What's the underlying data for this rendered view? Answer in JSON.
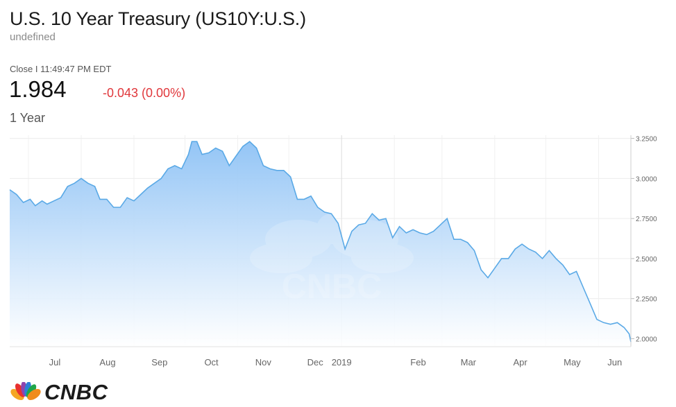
{
  "header": {
    "title": "U.S. 10 Year Treasury (US10Y:U.S.)",
    "subtitle": "undefined",
    "close_label": "Close I 11:49:47 PM EDT",
    "price": "1.984",
    "change": "-0.043 (0.00%)",
    "range": "1 Year"
  },
  "brand": {
    "name": "CNBC",
    "watermark": "CNBC"
  },
  "colors": {
    "line": "#5aa9e6",
    "fill_top": "#8ec2f5",
    "fill_bottom": "#ffffff",
    "change": "#e0373b"
  },
  "chart_data": {
    "type": "area",
    "x_tick_labels": [
      "Jul",
      "Aug",
      "Sep",
      "Oct",
      "Nov",
      "Dec",
      "2019",
      "Feb",
      "Mar",
      "Apr",
      "May",
      "Jun"
    ],
    "y_tick_labels": [
      "3.2500",
      "3.0000",
      "2.7500",
      "2.5000",
      "2.2500",
      "2.0000"
    ],
    "y_ticks": [
      3.25,
      3.0,
      2.75,
      2.5,
      2.25,
      2.0
    ],
    "ylim": [
      1.95,
      3.27
    ],
    "x_range": [
      "2018-06-20",
      "2019-06-20"
    ],
    "grid": true,
    "axis_position": "right",
    "series": [
      {
        "points": [
          [
            "2018-06-20",
            2.93
          ],
          [
            "2018-06-24",
            2.9
          ],
          [
            "2018-06-28",
            2.85
          ],
          [
            "2018-07-02",
            2.87
          ],
          [
            "2018-07-05",
            2.83
          ],
          [
            "2018-07-09",
            2.86
          ],
          [
            "2018-07-12",
            2.84
          ],
          [
            "2018-07-16",
            2.86
          ],
          [
            "2018-07-20",
            2.88
          ],
          [
            "2018-07-24",
            2.95
          ],
          [
            "2018-07-28",
            2.97
          ],
          [
            "2018-08-01",
            3.0
          ],
          [
            "2018-08-05",
            2.97
          ],
          [
            "2018-08-09",
            2.95
          ],
          [
            "2018-08-12",
            2.87
          ],
          [
            "2018-08-16",
            2.87
          ],
          [
            "2018-08-20",
            2.82
          ],
          [
            "2018-08-24",
            2.82
          ],
          [
            "2018-08-28",
            2.88
          ],
          [
            "2018-09-01",
            2.86
          ],
          [
            "2018-09-05",
            2.9
          ],
          [
            "2018-09-09",
            2.94
          ],
          [
            "2018-09-13",
            2.97
          ],
          [
            "2018-09-17",
            3.0
          ],
          [
            "2018-09-21",
            3.06
          ],
          [
            "2018-09-25",
            3.08
          ],
          [
            "2018-09-29",
            3.06
          ],
          [
            "2018-10-03",
            3.15
          ],
          [
            "2018-10-05",
            3.23
          ],
          [
            "2018-10-08",
            3.23
          ],
          [
            "2018-10-11",
            3.15
          ],
          [
            "2018-10-15",
            3.16
          ],
          [
            "2018-10-19",
            3.19
          ],
          [
            "2018-10-23",
            3.17
          ],
          [
            "2018-10-27",
            3.08
          ],
          [
            "2018-10-31",
            3.14
          ],
          [
            "2018-11-04",
            3.2
          ],
          [
            "2018-11-08",
            3.23
          ],
          [
            "2018-11-12",
            3.19
          ],
          [
            "2018-11-16",
            3.08
          ],
          [
            "2018-11-20",
            3.06
          ],
          [
            "2018-11-24",
            3.05
          ],
          [
            "2018-11-28",
            3.05
          ],
          [
            "2018-12-02",
            3.01
          ],
          [
            "2018-12-06",
            2.87
          ],
          [
            "2018-12-10",
            2.87
          ],
          [
            "2018-12-14",
            2.89
          ],
          [
            "2018-12-18",
            2.82
          ],
          [
            "2018-12-22",
            2.79
          ],
          [
            "2018-12-26",
            2.78
          ],
          [
            "2018-12-30",
            2.72
          ],
          [
            "2019-01-03",
            2.56
          ],
          [
            "2019-01-07",
            2.67
          ],
          [
            "2019-01-11",
            2.71
          ],
          [
            "2019-01-15",
            2.72
          ],
          [
            "2019-01-19",
            2.78
          ],
          [
            "2019-01-23",
            2.74
          ],
          [
            "2019-01-27",
            2.75
          ],
          [
            "2019-01-31",
            2.63
          ],
          [
            "2019-02-04",
            2.7
          ],
          [
            "2019-02-08",
            2.66
          ],
          [
            "2019-02-12",
            2.68
          ],
          [
            "2019-02-16",
            2.66
          ],
          [
            "2019-02-20",
            2.65
          ],
          [
            "2019-02-24",
            2.67
          ],
          [
            "2019-02-28",
            2.71
          ],
          [
            "2019-03-04",
            2.75
          ],
          [
            "2019-03-08",
            2.62
          ],
          [
            "2019-03-12",
            2.62
          ],
          [
            "2019-03-16",
            2.6
          ],
          [
            "2019-03-20",
            2.55
          ],
          [
            "2019-03-24",
            2.43
          ],
          [
            "2019-03-28",
            2.38
          ],
          [
            "2019-04-01",
            2.44
          ],
          [
            "2019-04-05",
            2.5
          ],
          [
            "2019-04-09",
            2.5
          ],
          [
            "2019-04-13",
            2.56
          ],
          [
            "2019-04-17",
            2.59
          ],
          [
            "2019-04-21",
            2.56
          ],
          [
            "2019-04-25",
            2.54
          ],
          [
            "2019-04-29",
            2.5
          ],
          [
            "2019-05-03",
            2.55
          ],
          [
            "2019-05-07",
            2.5
          ],
          [
            "2019-05-11",
            2.46
          ],
          [
            "2019-05-15",
            2.4
          ],
          [
            "2019-05-19",
            2.42
          ],
          [
            "2019-05-23",
            2.32
          ],
          [
            "2019-05-27",
            2.22
          ],
          [
            "2019-05-31",
            2.12
          ],
          [
            "2019-06-04",
            2.1
          ],
          [
            "2019-06-08",
            2.09
          ],
          [
            "2019-06-12",
            2.1
          ],
          [
            "2019-06-16",
            2.07
          ],
          [
            "2019-06-19",
            2.03
          ],
          [
            "2019-06-20",
            1.98
          ]
        ]
      }
    ]
  }
}
